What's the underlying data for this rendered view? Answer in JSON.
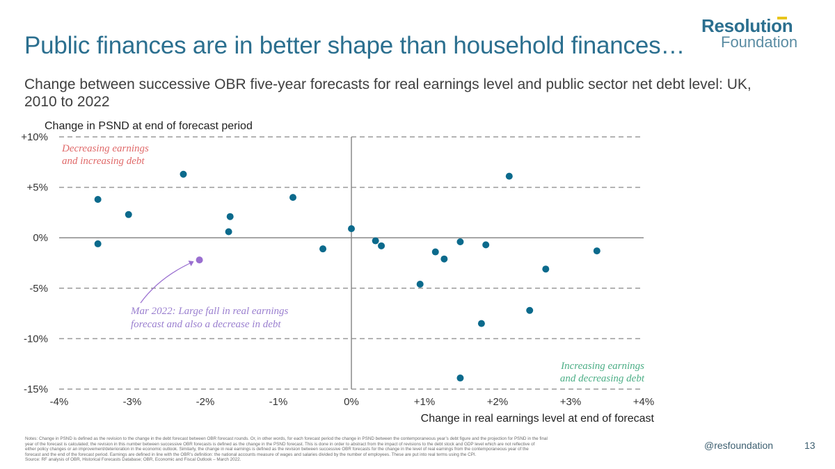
{
  "title": "Public finances are in better shape than household finances…",
  "logo": {
    "line1": "Resolution",
    "line2": "Foundation"
  },
  "subtitle": "Change between successive OBR five-year forecasts for real earnings level and public sector net debt level: UK, 2010 to 2022",
  "chart_data": {
    "type": "scatter",
    "ylabel": "Change in PSND at end of forecast period",
    "xlabel": "Change in real earnings level at end of forecast",
    "xlim": [
      -4,
      4
    ],
    "ylim": [
      -15,
      10
    ],
    "x_ticks": [
      -4,
      -3,
      -2,
      -1,
      0,
      1,
      2,
      3,
      4
    ],
    "x_tick_labels": [
      "-4%",
      "-3%",
      "-2%",
      "-1%",
      "0%",
      "+1%",
      "+2%",
      "+3%",
      "+4%"
    ],
    "y_ticks": [
      10,
      5,
      0,
      -5,
      -10,
      -15
    ],
    "y_tick_labels": [
      "+10%",
      "+5%",
      "0%",
      "-5%",
      "-10%",
      "-15%"
    ],
    "grid": "dashed horizontal lines at y ticks",
    "colors": {
      "point": "#0b6a8c",
      "highlight": "#9a6fd0",
      "axis": "#8a8a8a",
      "grid": "#9a9a9a"
    },
    "points": [
      {
        "x": -3.47,
        "y": 3.8
      },
      {
        "x": -3.47,
        "y": -0.6
      },
      {
        "x": -3.05,
        "y": 2.3
      },
      {
        "x": -2.3,
        "y": 6.3
      },
      {
        "x": -1.66,
        "y": 2.1
      },
      {
        "x": -1.68,
        "y": 0.6
      },
      {
        "x": -0.8,
        "y": 4.0
      },
      {
        "x": -0.39,
        "y": -1.1
      },
      {
        "x": 0.0,
        "y": 0.9
      },
      {
        "x": 0.33,
        "y": -0.3
      },
      {
        "x": 0.41,
        "y": -0.8
      },
      {
        "x": 0.94,
        "y": -4.6
      },
      {
        "x": 1.15,
        "y": -1.4
      },
      {
        "x": 1.27,
        "y": -2.1
      },
      {
        "x": 1.49,
        "y": -0.4
      },
      {
        "x": 1.49,
        "y": -13.9
      },
      {
        "x": 1.78,
        "y": -8.5
      },
      {
        "x": 1.84,
        "y": -0.7
      },
      {
        "x": 2.16,
        "y": 6.1
      },
      {
        "x": 2.44,
        "y": -7.2
      },
      {
        "x": 2.66,
        "y": -3.1
      },
      {
        "x": 3.36,
        "y": -1.3
      }
    ],
    "highlight_point": {
      "x": -2.08,
      "y": -2.2
    },
    "annotations": {
      "top_left": [
        "Decreasing earnings",
        "and increasing debt"
      ],
      "bottom_right": [
        "Increasing earnings",
        "and decreasing debt"
      ],
      "highlight": [
        "Mar 2022: Large fall in real earnings",
        "forecast and also a decrease in debt"
      ]
    }
  },
  "notes": [
    "Notes: Change in PSND is defined as the revision to the change in the debt forecast between OBR forecast rounds. Or, in other words, for each forecast period the change in PSND between the contemporaneous year’s debt figure and the projection for PSND in the final",
    "year of the forecast is calculated; the revision in this number between successive OBR forecasts is defined as the change in the PSND forecast. This is done in order to abstract from the impact of revisions to the debt stock and GDP level which are not reflective of",
    "either policy changes or an improvement/deterioration in the economic outlook. Similarly, the change in real earnings is defined as the revision between successive OBR forecasts for the change in the level of real earnings from the contemporaneous year of the",
    "forecast and the end of the forecast period. Earnings are defined in line with the OBR’s definition: the national accounts measure of wages and salaries divided by the number of employees. These are put into real terms using the CPI.",
    "Source: RF analysis of OBR, Historical Forecasts Database; OBR, Economic and Fiscal Outlook – March 2022."
  ],
  "footer": {
    "handle": "@resfoundation",
    "page": "13"
  }
}
